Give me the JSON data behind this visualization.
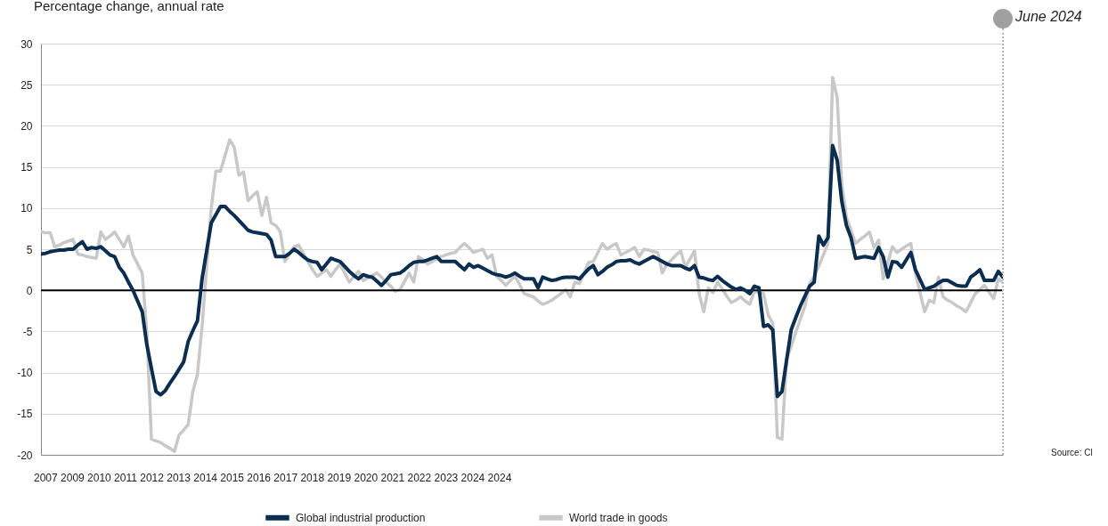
{
  "chart_data": {
    "type": "line",
    "title": "Percentage change, annual rate",
    "categories": [
      null,
      null,
      null,
      null,
      null,
      null,
      null,
      null,
      null,
      null,
      null,
      null,
      null,
      null,
      null,
      null,
      null,
      null,
      null,
      null,
      null,
      null,
      null,
      null,
      null,
      null,
      null,
      null,
      null,
      null,
      null,
      null,
      null,
      null,
      null,
      null,
      null,
      null,
      null,
      null,
      null,
      null,
      null,
      null,
      null,
      null,
      null,
      null,
      null,
      null,
      null,
      null,
      null,
      null,
      null,
      null,
      null,
      null,
      null,
      null,
      null,
      null,
      null,
      null,
      null,
      null,
      null,
      null,
      null,
      null,
      null,
      null,
      null,
      null,
      null,
      null,
      null,
      null,
      null,
      null,
      null,
      null,
      null,
      null,
      null,
      null,
      null,
      null,
      null,
      null,
      null,
      null,
      null,
      null,
      null,
      null,
      null,
      null,
      null,
      null,
      null,
      null,
      null,
      null,
      null,
      null,
      null,
      null,
      null,
      null,
      null,
      null,
      null,
      null,
      null,
      null,
      null,
      null,
      null,
      null,
      null,
      null,
      null,
      null,
      null,
      null,
      null,
      null,
      null,
      null,
      null,
      null,
      null,
      null,
      null,
      null,
      null,
      null,
      null,
      null,
      null,
      null,
      null,
      null,
      null,
      null,
      null,
      null,
      null,
      null,
      null,
      null,
      null,
      null,
      null,
      null,
      null,
      null,
      null,
      null,
      null,
      null,
      null,
      null,
      null,
      null,
      null,
      null,
      null,
      null,
      null,
      null,
      null,
      null,
      null,
      null,
      null,
      null,
      null,
      null,
      null,
      null,
      null,
      null,
      null,
      null,
      null,
      null,
      null,
      null,
      null,
      null,
      null,
      null,
      null,
      null,
      null,
      null,
      null,
      null,
      null,
      null,
      null,
      null,
      null,
      null,
      null,
      null,
      null,
      null
    ],
    "ylim": [
      -20,
      30
    ],
    "yticks": [
      -20,
      -15,
      -10,
      -5,
      0,
      5,
      10,
      15,
      20,
      25,
      30
    ],
    "grid": "y",
    "legend": "bottom",
    "tick_labels": "y",
    "line_style": "solid",
    "series": [
      {
        "name": "Global industrial production",
        "color": "#0b2d50",
        "values": [
          4.4,
          4.5,
          4.7,
          4.8,
          4.9,
          4.9,
          5.0,
          5.0,
          5.5,
          5.9,
          5.0,
          5.2,
          5.1,
          5.3,
          4.8,
          4.3,
          4.1,
          2.8,
          2.1,
          1.0,
          0,
          -1.3,
          -2.6,
          -6.6,
          -9.5,
          -12.3,
          -12.7,
          -12.2,
          -11.3,
          -10.5,
          -9.6,
          -8.7,
          -6.2,
          -4.9,
          -3.7,
          1.4,
          4.8,
          8.2,
          9.2,
          10.2,
          10.2,
          9.6,
          9.1,
          8.5,
          7.9,
          7.3,
          7.1,
          7.0,
          6.9,
          6.8,
          6.1,
          4.1,
          4.1,
          4.1,
          4.5,
          5.0,
          4.6,
          4.1,
          3.7,
          3.5,
          3.4,
          2.5,
          3.2,
          3.9,
          3.7,
          3.5,
          2.9,
          2.3,
          1.8,
          1.4,
          1.9,
          1.7,
          1.6,
          1.1,
          0.6,
          1.2,
          1.9,
          2.0,
          2.1,
          2.5,
          3.0,
          3.4,
          3.5,
          3.5,
          3.7,
          3.9,
          4.1,
          3.5,
          3.5,
          3.5,
          3.5,
          3.0,
          2.5,
          3.2,
          2.8,
          3.0,
          2.7,
          2.4,
          2.1,
          1.9,
          1.8,
          1.6,
          1.8,
          2.1,
          1.7,
          1.4,
          1.4,
          1.4,
          0.3,
          1.6,
          1.4,
          1.2,
          1.3,
          1.5,
          1.6,
          1.6,
          1.6,
          1.4,
          2.0,
          2.6,
          3.0,
          1.9,
          2.3,
          2.8,
          3.1,
          3.5,
          3.6,
          3.6,
          3.7,
          3.4,
          3.2,
          3.5,
          3.8,
          4.1,
          3.8,
          3.5,
          3.2,
          3.0,
          3.0,
          3.0,
          2.7,
          2.5,
          3.0,
          1.6,
          1.5,
          1.3,
          1.2,
          1.7,
          1.2,
          0.8,
          0.4,
          0.1,
          0.3,
          0,
          -0.4,
          0.5,
          0.3,
          -4.4,
          -4.2,
          -4.8,
          -12.9,
          -12.3,
          -8.5,
          -4.8,
          -3.3,
          -1.9,
          -0.7,
          0.5,
          1.0,
          6.6,
          5.5,
          6.4,
          17.6,
          15.8,
          10.8,
          7.9,
          6.4,
          3.9,
          4.0,
          4.1,
          4.0,
          3.9,
          5.2,
          4.1,
          1.6,
          3.5,
          3.4,
          2.8,
          3.7,
          4.6,
          2.5,
          1.3,
          0.1,
          0.3,
          0.5,
          0.9,
          1.2,
          1.2,
          0.9,
          0.6,
          0.5,
          0.5,
          1.6,
          2.0,
          2.5,
          1.2,
          1.2,
          1.2,
          2.3,
          1.6
        ]
      },
      {
        "name": "World trade in goods",
        "color": "#c8c8c8",
        "values": [
          7.1,
          7.0,
          7.0,
          5.3,
          5.5,
          5.8,
          6.0,
          6.2,
          4.4,
          4.3,
          4.1,
          4.0,
          3.9,
          7.1,
          6.2,
          6.6,
          7.1,
          6.2,
          5.3,
          6.6,
          4.3,
          3.2,
          2.1,
          -5.1,
          -18.1,
          -18.3,
          -18.5,
          -18.9,
          -19.2,
          -19.6,
          -17.6,
          -17.0,
          -16.3,
          -12.3,
          -10.2,
          -4.4,
          2.8,
          10.0,
          14.5,
          14.5,
          16.4,
          18.3,
          17.4,
          14.0,
          14.4,
          10.9,
          11.5,
          12.0,
          9.1,
          11.3,
          8.2,
          7.9,
          7.1,
          3.5,
          4.4,
          5.3,
          5.5,
          4.5,
          3.5,
          2.5,
          1.7,
          2.1,
          2.5,
          1.7,
          2.5,
          3.2,
          2.1,
          1.0,
          1.7,
          2.3,
          1.2,
          1.5,
          1.8,
          2.1,
          1.6,
          1.0,
          0.5,
          -0.1,
          0.1,
          1.1,
          2.1,
          1.0,
          4.1,
          3.7,
          3.2,
          3.5,
          3.8,
          4.1,
          4.3,
          4.5,
          4.6,
          5.2,
          5.7,
          5.2,
          4.6,
          4.8,
          5.0,
          3.9,
          4.3,
          1.7,
          1.2,
          0.6,
          1.2,
          1.7,
          0.7,
          -0.4,
          -0.6,
          -0.8,
          -1.3,
          -1.7,
          -1.5,
          -1.2,
          -0.8,
          -0.4,
          0.1,
          -0.8,
          1.0,
          0.8,
          2.1,
          3.4,
          3.5,
          4.6,
          5.7,
          5.0,
          5.4,
          5.7,
          4.3,
          4.6,
          4.9,
          5.2,
          4.1,
          5.0,
          4.9,
          4.7,
          4.6,
          2.1,
          3.2,
          3.7,
          4.3,
          4.8,
          2.8,
          3.8,
          4.8,
          -0.4,
          -2.6,
          0.3,
          -0.3,
          1.0,
          0.2,
          -0.7,
          -1.5,
          -1.2,
          -0.8,
          -1.3,
          -1.7,
          -0.1,
          -0.3,
          -0.4,
          -3.0,
          -4.0,
          -17.9,
          -18.1,
          -8.4,
          -6.8,
          -5.1,
          -3.5,
          -1.9,
          0.8,
          1.7,
          3.0,
          4.3,
          5.7,
          25.9,
          23.4,
          12.9,
          8.9,
          7.3,
          5.7,
          6.2,
          6.6,
          7.1,
          5.2,
          6.1,
          1.4,
          3.4,
          5.3,
          4.6,
          5.0,
          5.4,
          5.7,
          2.1,
          -0.3,
          -2.6,
          -1.2,
          -1.5,
          1.6,
          -0.8,
          -1.2,
          -1.5,
          -1.9,
          -2.2,
          -2.6,
          -1.5,
          -0.4,
          0.1,
          0.6,
          -0.2,
          -1.0,
          1.4,
          1.0
        ]
      }
    ],
    "ref_lines": [
      {
        "axis": "y",
        "value": 0,
        "color": "#000000",
        "line_style": "solid"
      }
    ],
    "annotations": [
      "June 2024",
      "2007 2009 2010 2011 2012 2013 2014 2015 2016 2017 2018 2019 2020 2021 2022 2023 2024 2024",
      "Source: Cl"
    ]
  }
}
